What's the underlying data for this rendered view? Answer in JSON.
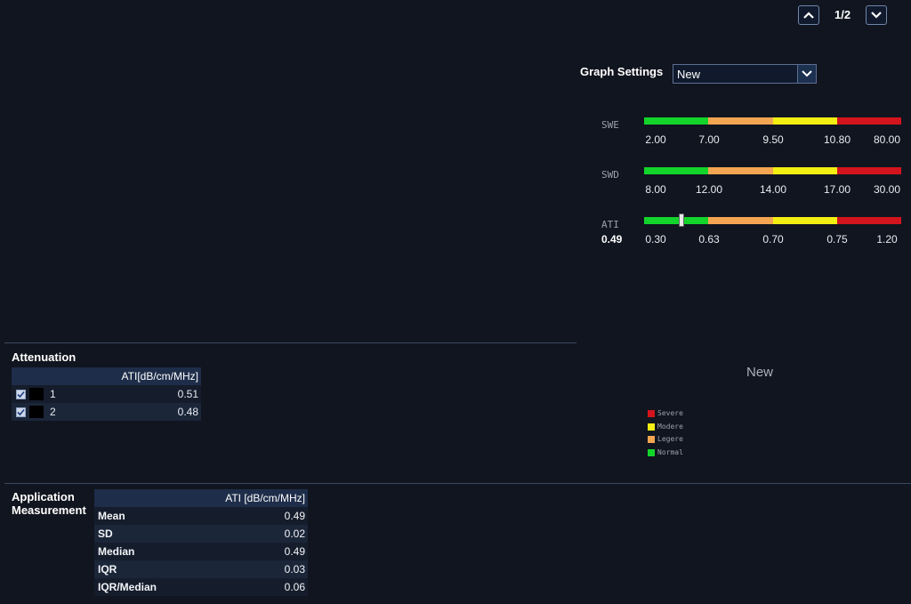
{
  "pager": {
    "text": "1/2",
    "up_icon": "chevron-up-icon",
    "down_icon": "chevron-down-icon"
  },
  "graph_settings": {
    "label": "Graph Settings",
    "selected": "New"
  },
  "scales": [
    {
      "name": "SWE",
      "ticks": [
        "2.00",
        "7.00",
        "9.50",
        "10.80",
        "80.00"
      ]
    },
    {
      "name": "SWD",
      "ticks": [
        "8.00",
        "12.00",
        "14.00",
        "17.00",
        "30.00"
      ]
    },
    {
      "name": "ATI",
      "ticks": [
        "0.30",
        "0.63",
        "0.70",
        "0.75",
        "1.20"
      ],
      "value": "0.49"
    }
  ],
  "scale_colors": {
    "normal": "#13d42b",
    "legere": "#f4a551",
    "modere": "#f3ef12",
    "severe": "#d3141d"
  },
  "attenuation": {
    "title": "Attenuation",
    "column": "ATI[dB/cm/MHz]",
    "rows": [
      {
        "checked": true,
        "index": "1",
        "value": "0.51"
      },
      {
        "checked": true,
        "index": "2",
        "value": "0.48"
      }
    ]
  },
  "graph_name": "New",
  "legend": [
    {
      "label": "Severe",
      "color": "#d3141d"
    },
    {
      "label": "Modere",
      "color": "#f3ef12"
    },
    {
      "label": "Legere",
      "color": "#f4a551"
    },
    {
      "label": "Normal",
      "color": "#13d42b"
    }
  ],
  "application": {
    "title_line1": "Application",
    "title_line2": "Measurement",
    "column": "ATI [dB/cm/MHz]",
    "rows": [
      {
        "label": "Mean",
        "value": "0.49"
      },
      {
        "label": "SD",
        "value": "0.02"
      },
      {
        "label": "Median",
        "value": "0.49"
      },
      {
        "label": "IQR",
        "value": "0.03"
      },
      {
        "label": "IQR/Median",
        "value": "0.06"
      }
    ]
  }
}
